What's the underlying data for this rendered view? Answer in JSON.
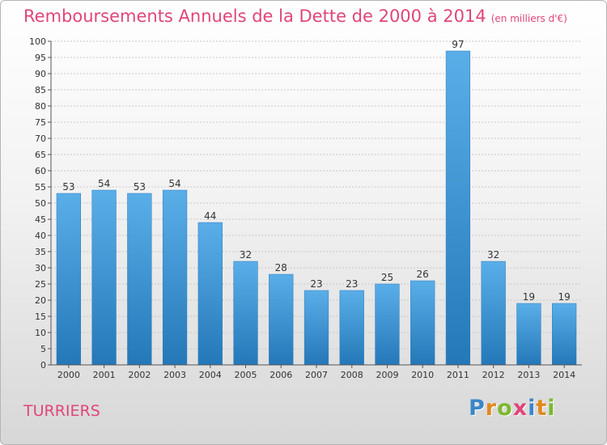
{
  "title": "Remboursements Annuels de la Dette de 2000 à 2014",
  "subtitle": "(en milliers d'€)",
  "commune": "TURRIERS",
  "brand": {
    "name": "Proxiti",
    "letters": [
      "P",
      "r",
      "o",
      "x",
      "i",
      "t",
      "i"
    ],
    "colors": [
      "#3a86c8",
      "#e08a1e",
      "#7cb82f",
      "#e0457b",
      "#3a86c8",
      "#e08a1e",
      "#7cb82f"
    ]
  },
  "colors": {
    "accent": "#e0457b",
    "bar_top": "#5aaee8",
    "bar_bottom": "#2478b8",
    "grid": "#c8c8c8",
    "axis": "#555555"
  },
  "chart_data": {
    "type": "bar",
    "title": "Remboursements Annuels de la Dette de 2000 à 2014",
    "subtitle": "(en milliers d'€)",
    "categories": [
      "2000",
      "2001",
      "2002",
      "2003",
      "2004",
      "2005",
      "2006",
      "2007",
      "2008",
      "2009",
      "2010",
      "2011",
      "2012",
      "2013",
      "2014"
    ],
    "values": [
      53,
      54,
      53,
      54,
      44,
      32,
      28,
      23,
      23,
      25,
      26,
      97,
      32,
      19,
      19
    ],
    "ylim": [
      0,
      100
    ],
    "ytick_step": 5,
    "grid": true,
    "legend": "none"
  }
}
